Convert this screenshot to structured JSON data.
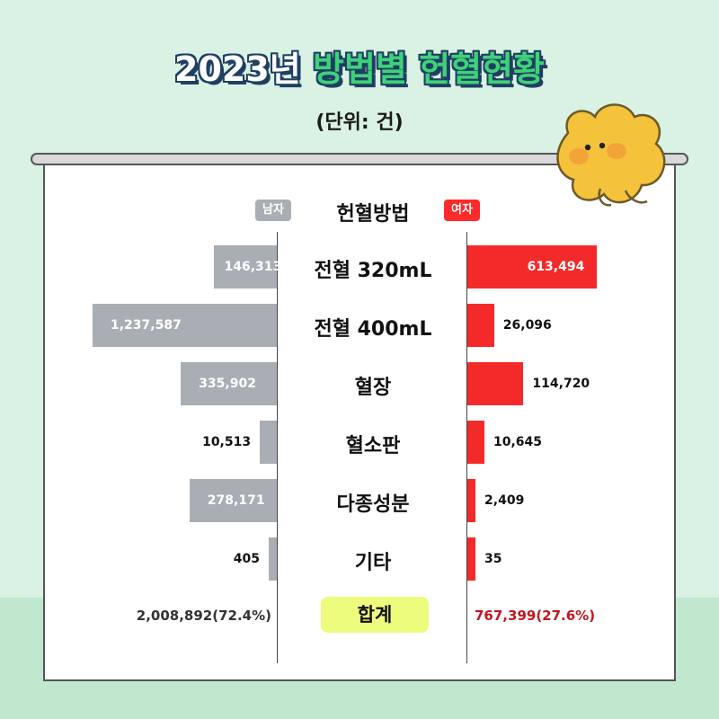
{
  "title": {
    "year": "2023년",
    "main": "방법별 헌혈현황"
  },
  "unit_label": "(단위: 건)",
  "legend": {
    "male": "남자",
    "female": "여자",
    "category_header": "헌혈방법"
  },
  "colors": {
    "male": "#a9aeb4",
    "female": "#f42a2a",
    "total_button": "#eefc7e",
    "title_green": "#3fd17a"
  },
  "chart_data": {
    "type": "bar",
    "orientation": "horizontal-diverging",
    "categories": [
      "전혈 320mL",
      "전혈 400mL",
      "혈장",
      "혈소판",
      "다종성분",
      "기타"
    ],
    "series": [
      {
        "name": "남자",
        "values": [
          146313,
          1237587,
          335902,
          10513,
          278171,
          405
        ],
        "labels": [
          "146,313",
          "1,237,587",
          "335,902",
          "10,513",
          "278,171",
          "405"
        ]
      },
      {
        "name": "여자",
        "values": [
          613494,
          26096,
          114720,
          10645,
          2409,
          35
        ],
        "labels": [
          "613,494",
          "26,096",
          "114,720",
          "10,645",
          "2,409",
          "35"
        ]
      }
    ],
    "total": {
      "label": "합계",
      "male": "2,008,892(72.4%)",
      "female": "767,399(27.6%)"
    }
  }
}
